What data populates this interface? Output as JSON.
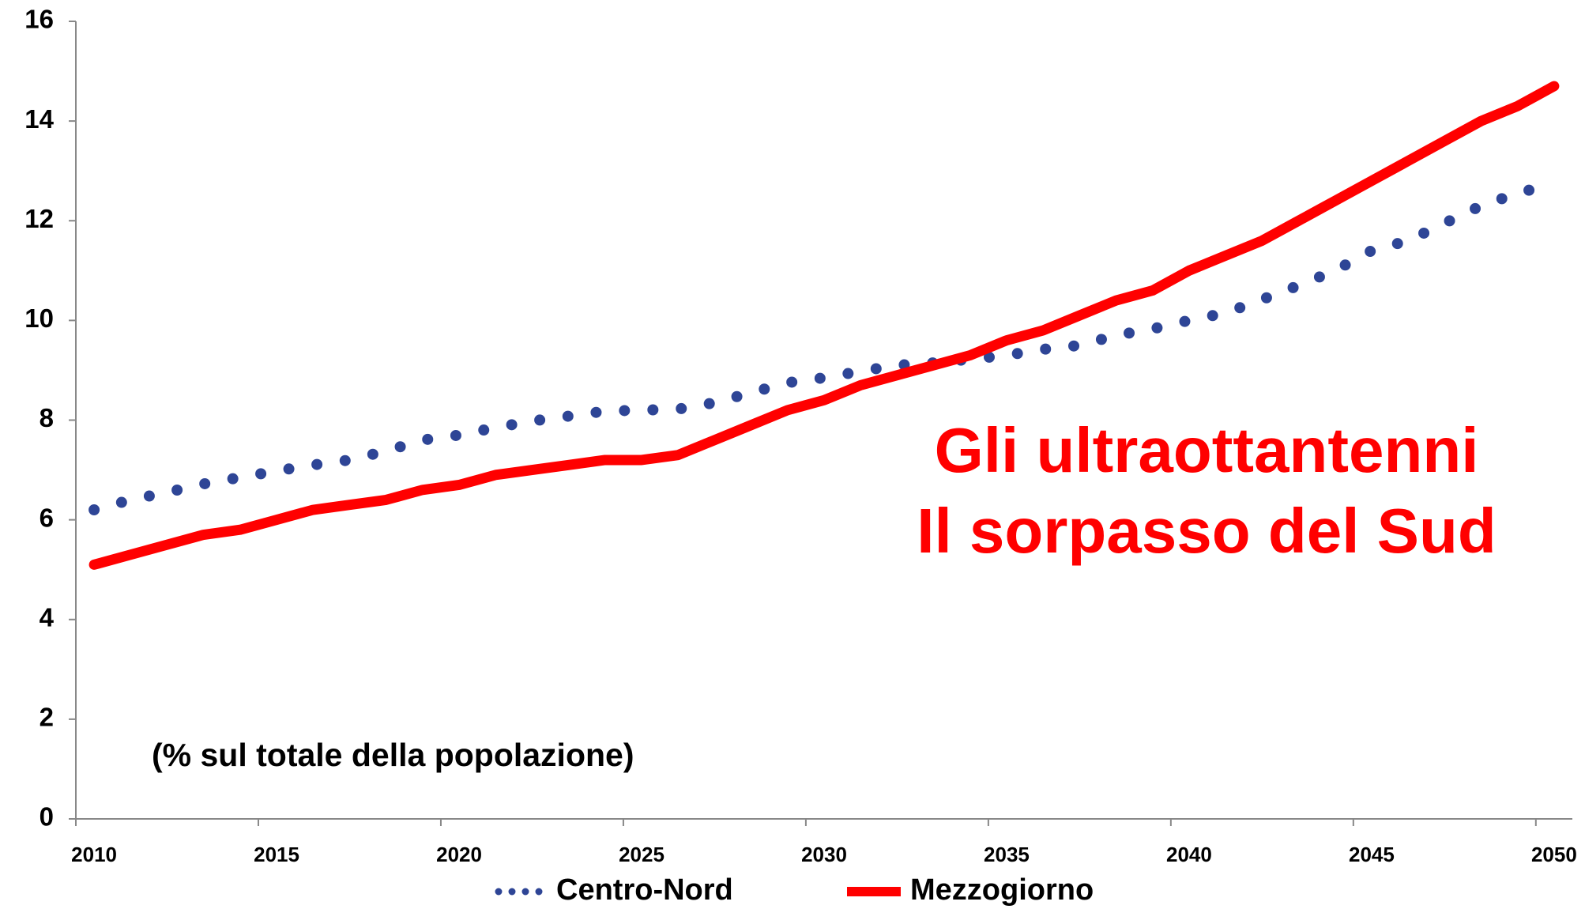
{
  "chart_data": {
    "type": "line",
    "annotation": [
      "Gli ultraottantenni",
      "Il sorpasso del Sud"
    ],
    "note": "(% sul totale della popolazione)",
    "categories": [
      "2010",
      null,
      null,
      null,
      null,
      "2015",
      null,
      null,
      null,
      null,
      "2020",
      null,
      null,
      null,
      null,
      "2025",
      null,
      null,
      null,
      null,
      "2030",
      null,
      null,
      null,
      null,
      "2035",
      null,
      null,
      null,
      null,
      "2040",
      null,
      null,
      null,
      null,
      "2045",
      null,
      null,
      null,
      null,
      "2050"
    ],
    "series": [
      {
        "name": "Centro-Nord",
        "color": "#2e4596",
        "style": "dotted",
        "values": [
          6.2,
          6.4,
          6.55,
          6.72,
          6.85,
          6.98,
          7.1,
          7.2,
          7.38,
          7.6,
          7.7,
          7.85,
          7.98,
          8.08,
          8.18,
          8.2,
          8.22,
          8.35,
          8.55,
          8.75,
          8.85,
          8.98,
          9.1,
          9.15,
          9.22,
          9.3,
          9.42,
          9.5,
          9.7,
          9.83,
          10.0,
          10.15,
          10.42,
          10.7,
          11.0,
          11.4,
          11.6,
          11.95,
          12.3,
          12.55,
          12.75
        ]
      },
      {
        "name": "Mezzogiorno",
        "color": "#ff0000",
        "style": "solid",
        "values": [
          5.1,
          5.3,
          5.5,
          5.7,
          5.8,
          6.0,
          6.2,
          6.3,
          6.4,
          6.6,
          6.7,
          6.9,
          7.0,
          7.1,
          7.2,
          7.2,
          7.3,
          7.6,
          7.9,
          8.2,
          8.4,
          8.7,
          8.9,
          9.1,
          9.3,
          9.6,
          9.8,
          10.1,
          10.4,
          10.6,
          11.0,
          11.3,
          11.6,
          12.0,
          12.4,
          12.8,
          13.2,
          13.6,
          14.0,
          14.3,
          14.7
        ]
      }
    ],
    "ylim": [
      0,
      16
    ],
    "yticks": [
      0,
      2,
      4,
      6,
      8,
      10,
      12,
      14,
      16
    ],
    "grid": false,
    "legend": "bottom"
  }
}
